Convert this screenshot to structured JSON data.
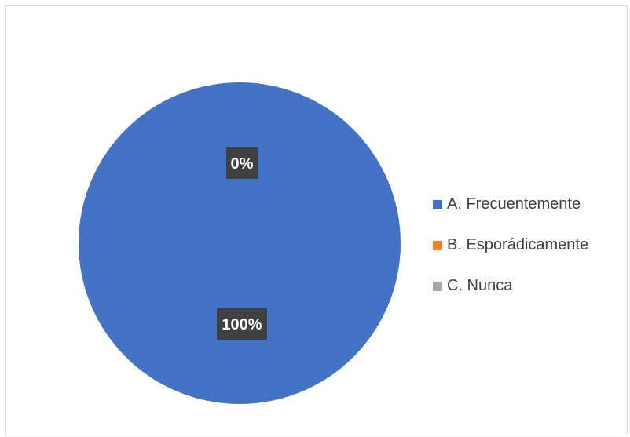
{
  "chart_data": {
    "type": "pie",
    "slices": [
      {
        "label": "A. Frecuentemente",
        "value": 100,
        "data_label": "100%",
        "color": "#4472c4"
      },
      {
        "label": "B. Esporádicamente",
        "value": 0,
        "data_label": "0%",
        "color": "#ed7d31"
      },
      {
        "label": "C. Nunca",
        "value": 0,
        "data_label": "0%",
        "color": "#a5a5a5"
      }
    ],
    "legend_position": "right",
    "data_label_bg": "#404040",
    "data_label_color": "#ffffff"
  }
}
